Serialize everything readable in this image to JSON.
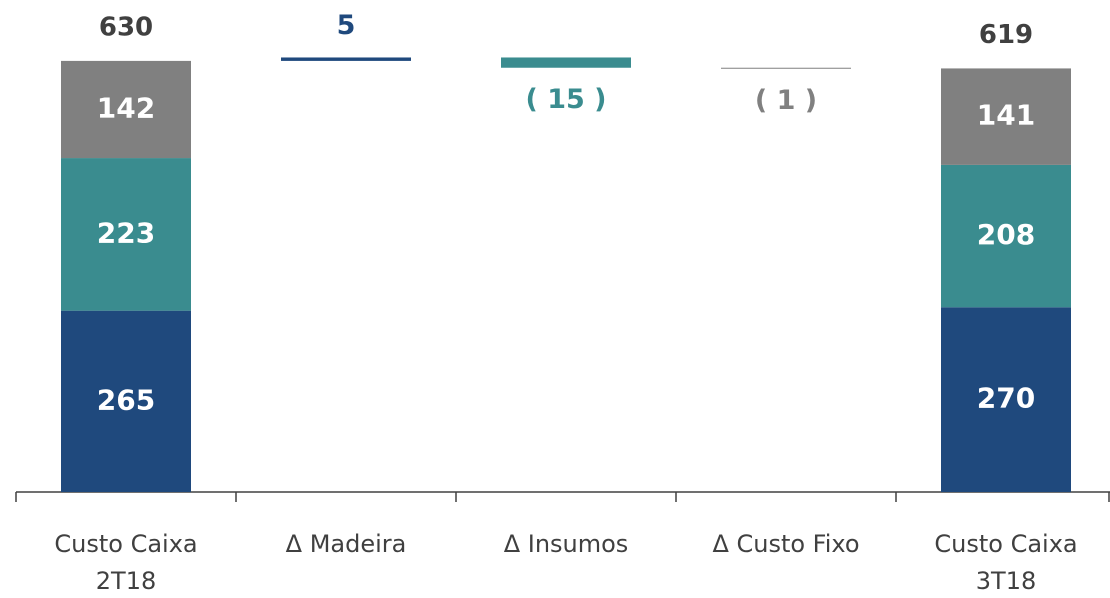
{
  "chart_data": {
    "type": "waterfall",
    "categories": [
      [
        "Custo Caixa",
        "2T18"
      ],
      [
        "Δ Madeira"
      ],
      [
        "Δ Insumos"
      ],
      [
        "Δ Custo Fixo"
      ],
      [
        "Custo Caixa",
        "3T18"
      ]
    ],
    "series": [
      {
        "color": "#1f497d",
        "values": [
          265,
          5,
          null,
          null,
          270
        ]
      },
      {
        "color": "#3a8c8f",
        "values": [
          223,
          null,
          -15,
          null,
          208
        ],
        "value_labels": [
          "223",
          null,
          "( 15 )",
          null,
          "208"
        ]
      },
      {
        "color": "#808080",
        "values": [
          142,
          null,
          null,
          -1,
          141
        ],
        "value_labels": [
          "142",
          null,
          null,
          "( 1 )",
          "141"
        ]
      }
    ],
    "totals": [
      630,
      null,
      null,
      null,
      619
    ],
    "ylim": [
      0,
      700
    ]
  }
}
